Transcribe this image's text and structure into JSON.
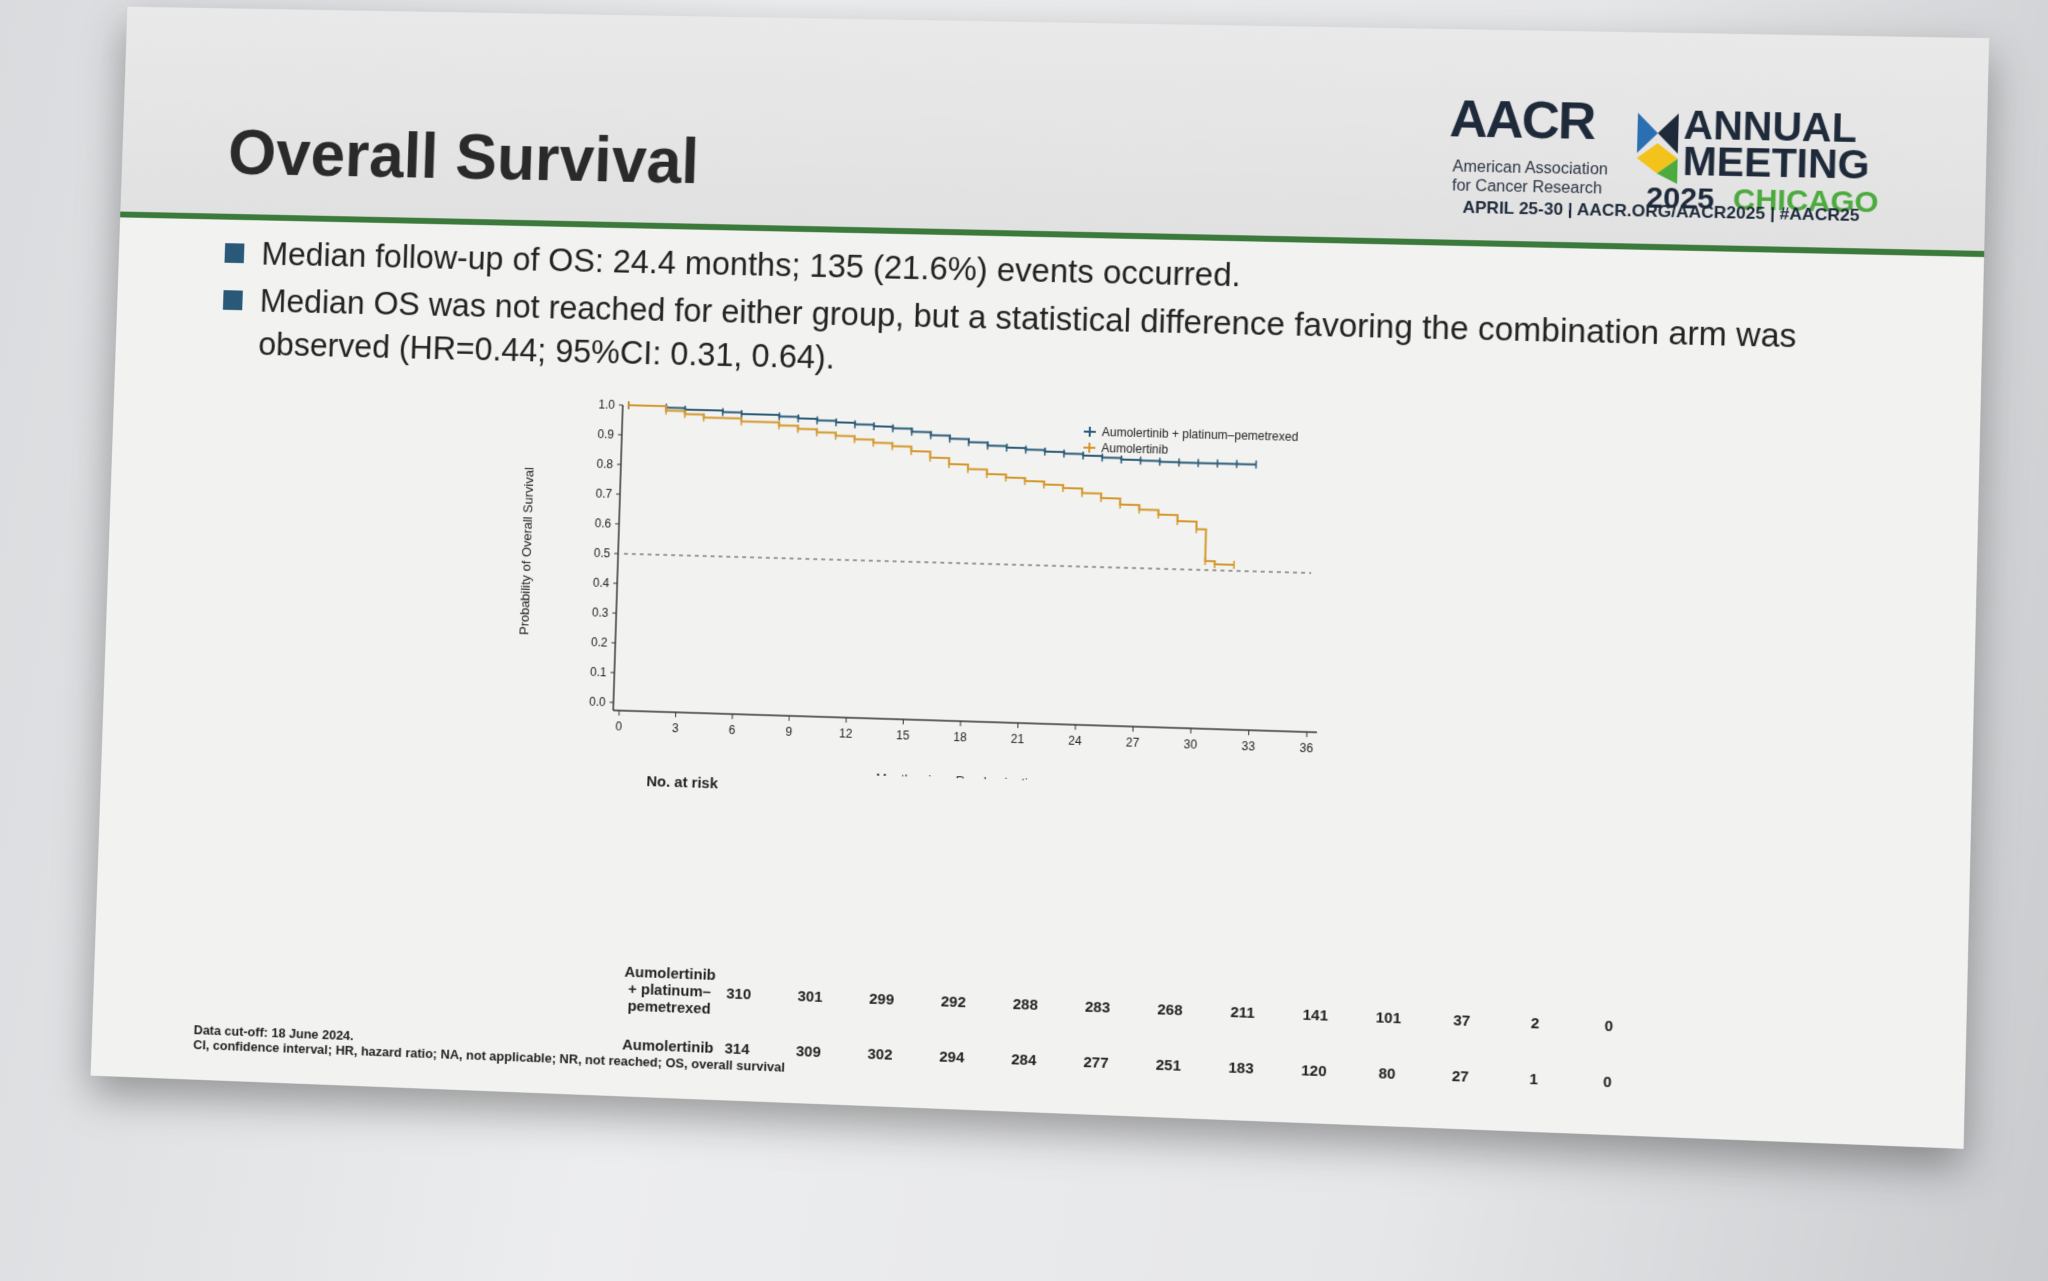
{
  "slide": {
    "title": "Overall Survival",
    "bullets": [
      "Median follow-up of OS: 24.4 months; 135 (21.6%) events occurred.",
      "Median OS was not reached for either group, but a statistical difference favoring the combination arm was observed (HR=0.44; 95%CI: 0.31, 0.64)."
    ],
    "footnote_1": "Data cut-off: 18 June 2024.",
    "footnote_2": "CI, confidence interval; HR, hazard ratio; NA, not applicable; NR, not reached; OS, overall survival"
  },
  "logo": {
    "aacr": "AACR",
    "org_line1": "American Association",
    "org_line2": "for Cancer Research",
    "annual": "ANNUAL",
    "meeting": "MEETING",
    "year": "2025",
    "city": "CHICAGO",
    "dates": "APRIL 25-30  |  AACR.ORG/AACR2025  |  #AACR25"
  },
  "colors": {
    "combo": "#2b5b78",
    "mono": "#d4982a",
    "rule": "#3b7a3b"
  },
  "chart_data": {
    "type": "line",
    "title": "",
    "xlabel": "Months since Randomization",
    "ylabel": "Probability of Overall Survival",
    "xlim": [
      0,
      36
    ],
    "ylim": [
      0.0,
      1.0
    ],
    "x_ticks": [
      "0",
      "3",
      "6",
      "9",
      "12",
      "15",
      "18",
      "21",
      "24",
      "27",
      "30",
      "33",
      "36"
    ],
    "y_ticks": [
      "0.0",
      "0.1",
      "0.2",
      "0.3",
      "0.4",
      "0.5",
      "0.6",
      "0.7",
      "0.8",
      "0.9",
      "1.0"
    ],
    "reference_line_y": 0.5,
    "legend_position": "top-right",
    "series": [
      {
        "name": "Aumolertinib + platinum–pemetrexed",
        "x": [
          0,
          2,
          3,
          5,
          6,
          8,
          9,
          10,
          11,
          12,
          13,
          14,
          15,
          16,
          17,
          18,
          19,
          20,
          21,
          22,
          23,
          24,
          25,
          26,
          27,
          28,
          29,
          30,
          31,
          32,
          33
        ],
        "y": [
          1.0,
          0.995,
          0.99,
          0.985,
          0.98,
          0.975,
          0.97,
          0.965,
          0.96,
          0.955,
          0.95,
          0.945,
          0.935,
          0.925,
          0.915,
          0.905,
          0.895,
          0.89,
          0.885,
          0.88,
          0.875,
          0.87,
          0.865,
          0.86,
          0.858,
          0.856,
          0.855,
          0.855,
          0.855,
          0.855,
          0.855
        ]
      },
      {
        "name": "Aumolertinib",
        "x": [
          0,
          2,
          3,
          4,
          6,
          8,
          9,
          10,
          11,
          12,
          13,
          14,
          15,
          16,
          17,
          18,
          19,
          20,
          21,
          22,
          23,
          24,
          25,
          26,
          27,
          28,
          29,
          30,
          30.5,
          31,
          32
        ],
        "y": [
          1.0,
          0.985,
          0.975,
          0.965,
          0.955,
          0.945,
          0.935,
          0.925,
          0.915,
          0.905,
          0.895,
          0.885,
          0.87,
          0.85,
          0.83,
          0.815,
          0.8,
          0.79,
          0.78,
          0.77,
          0.76,
          0.745,
          0.73,
          0.71,
          0.695,
          0.68,
          0.66,
          0.635,
          0.53,
          0.52,
          0.52
        ]
      }
    ]
  },
  "risk_table": {
    "title": "No. at risk",
    "rows": [
      {
        "label_lines": [
          "Aumolertinib",
          "+ platinum–",
          "pemetrexed"
        ],
        "values": [
          "310",
          "301",
          "299",
          "292",
          "288",
          "283",
          "268",
          "211",
          "141",
          "101",
          "37",
          "2",
          "0"
        ]
      },
      {
        "label_lines": [
          "Aumolertinib"
        ],
        "values": [
          "314",
          "309",
          "302",
          "294",
          "284",
          "277",
          "251",
          "183",
          "120",
          "80",
          "27",
          "1",
          "0"
        ]
      }
    ]
  }
}
